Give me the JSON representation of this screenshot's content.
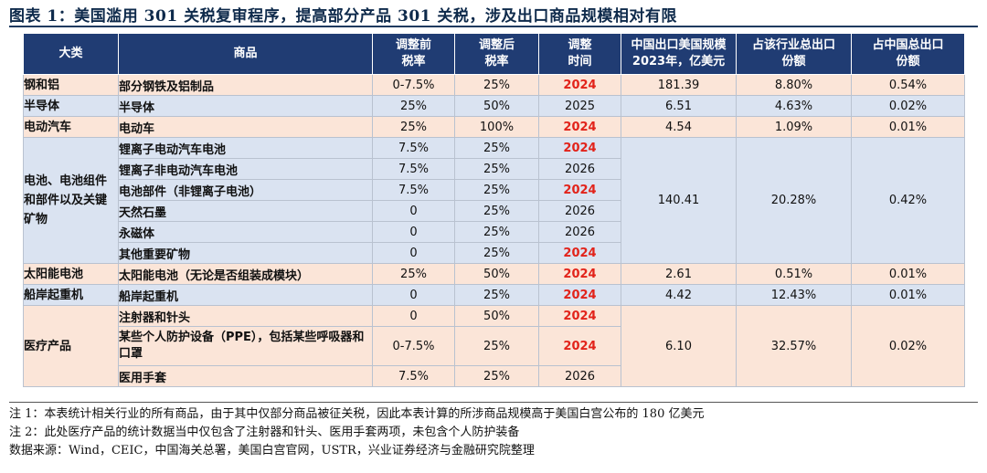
{
  "title": "图表 1：美国滥用 301 关税复审程序，提高部分产品 301 关税，涉及出口商品规模相对有限",
  "headers": {
    "category": "大类",
    "product": "商品",
    "before": [
      "调整前",
      "税率"
    ],
    "after": [
      "调整后",
      "税率"
    ],
    "time": [
      "调整",
      "时间"
    ],
    "export": [
      "中国出口美国规模",
      "2023年，亿美元"
    ],
    "industry_share": [
      "占该行业总出口",
      "份额"
    ],
    "china_share": [
      "占中国总出口",
      "份额"
    ]
  },
  "groups": [
    {
      "category": "钢和铝",
      "color": "peach",
      "export": "181.39",
      "industry_share": "8.80%",
      "china_share": "0.54%",
      "items": [
        {
          "product": "部分钢铁及铝制品",
          "before": "0-7.5%",
          "after": "25%",
          "time": "2024",
          "highlight": true
        }
      ]
    },
    {
      "category": "半导体",
      "color": "blue",
      "export": "6.51",
      "industry_share": "4.63%",
      "china_share": "0.02%",
      "items": [
        {
          "product": "半导体",
          "before": "25%",
          "after": "50%",
          "time": "2025",
          "highlight": false
        }
      ]
    },
    {
      "category": "电动汽车",
      "color": "peach",
      "export": "4.54",
      "industry_share": "1.09%",
      "china_share": "0.01%",
      "items": [
        {
          "product": "电动车",
          "before": "25%",
          "after": "100%",
          "time": "2024",
          "highlight": true
        }
      ]
    },
    {
      "category": "电池、电池组件和部件以及关键矿物",
      "color": "blue",
      "export": "140.41",
      "industry_share": "20.28%",
      "china_share": "0.42%",
      "items": [
        {
          "product": "锂离子电动汽车电池",
          "before": "7.5%",
          "after": "25%",
          "time": "2024",
          "highlight": true
        },
        {
          "product": "锂离子非电动汽车电池",
          "before": "7.5%",
          "after": "25%",
          "time": "2026",
          "highlight": false
        },
        {
          "product": "电池部件（非锂离子电池）",
          "before": "7.5%",
          "after": "25%",
          "time": "2024",
          "highlight": true
        },
        {
          "product": "天然石墨",
          "before": "0",
          "after": "25%",
          "time": "2026",
          "highlight": false
        },
        {
          "product": "永磁体",
          "before": "0",
          "after": "25%",
          "time": "2026",
          "highlight": false
        },
        {
          "product": "其他重要矿物",
          "before": "0",
          "after": "25%",
          "time": "2024",
          "highlight": true
        }
      ]
    },
    {
      "category": "太阳能电池",
      "color": "peach",
      "export": "2.61",
      "industry_share": "0.51%",
      "china_share": "0.01%",
      "items": [
        {
          "product": "太阳能电池（无论是否组装成模块）",
          "before": "25%",
          "after": "50%",
          "time": "2024",
          "highlight": true
        }
      ]
    },
    {
      "category": "船岸起重机",
      "color": "blue",
      "export": "4.42",
      "industry_share": "12.43%",
      "china_share": "0.01%",
      "items": [
        {
          "product": "船岸起重机",
          "before": "0",
          "after": "25%",
          "time": "2024",
          "highlight": true
        }
      ]
    },
    {
      "category": "医疗产品",
      "color": "peach",
      "export": "6.10",
      "industry_share": "32.57%",
      "china_share": "0.02%",
      "items": [
        {
          "product": "注射器和针头",
          "before": "0",
          "after": "50%",
          "time": "2024",
          "highlight": true
        },
        {
          "product": "某些个人防护设备（PPE），包括某些呼吸器和口罩",
          "before": "0-7.5%",
          "after": "25%",
          "time": "2024",
          "highlight": true
        },
        {
          "product": "医用手套",
          "before": "7.5%",
          "after": "25%",
          "time": "2026",
          "highlight": false
        }
      ]
    }
  ],
  "notes": [
    "注 1：本表统计相关行业的所有商品，由于其中仅部分商品被征关税，因此本表计算的所涉商品规模高于美国白宫公布的 180 亿美元",
    "注 2：此处医疗产品的统计数据当中仅包含了注射器和针头、医用手套两项，未包含个人防护装备",
    "数据来源：Wind，CEIC，中国海关总署，美国白宫官网，USTR，兴业证券经济与金融研究院整理"
  ]
}
